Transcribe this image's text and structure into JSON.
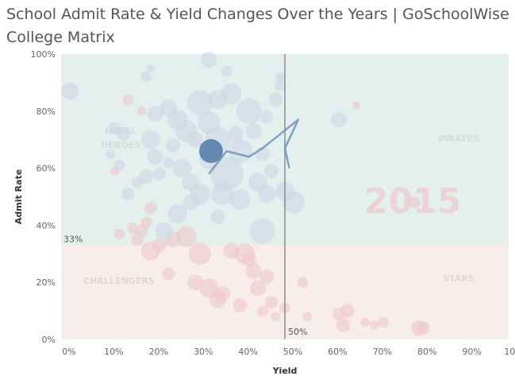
{
  "title_line1": "School Admit Rate & Yield Changes  Over the Years | GoSchoolWise",
  "title_line2": "College Matrix",
  "colors": {
    "upper_region": "#e3f0ee",
    "lower_region": "#f7eeec",
    "grey_bubble": "#ccd6e4",
    "pink_bubble": "#efc4c8",
    "highlight_bubble": "#4e79a7",
    "trail": "#6e93b8",
    "ref_line": "#8c8c8c",
    "quadrant_label": "#d9d9d9",
    "year_watermark": "#eecdd1"
  },
  "chart_data": {
    "type": "scatter",
    "title": "School Admit Rate & Yield Changes  Over the Years | GoSchoolWise College Matrix",
    "xlabel": "Yield",
    "ylabel": "Admit Rate",
    "xlim": [
      0,
      100
    ],
    "ylim": [
      0,
      100
    ],
    "x_ticks": [
      "0%",
      "10%",
      "20%",
      "30%",
      "40%",
      "50%",
      "60%",
      "70%",
      "80%",
      "90%",
      "100%"
    ],
    "y_ticks": [
      "0%",
      "20%",
      "40%",
      "60%",
      "80%",
      "100%"
    ],
    "grid": false,
    "reference_lines": {
      "admit_rate": 33,
      "admit_rate_label": "33%",
      "yield": 50,
      "yield_label": "50%"
    },
    "quadrants": {
      "top_left": "LOCAL HEROES",
      "top_right": "PIRATES",
      "bottom_left": "CHALLENGERS",
      "bottom_right": "STARS"
    },
    "year_watermark": "2015",
    "highlighted_school": {
      "x": 33.5,
      "y": 66,
      "r": 15
    },
    "trail": [
      [
        33,
        58
      ],
      [
        37,
        66
      ],
      [
        42,
        64
      ],
      [
        45,
        67
      ],
      [
        53,
        77
      ],
      [
        50,
        67
      ],
      [
        51,
        60
      ]
    ],
    "points_upper": [
      [
        2,
        87,
        11
      ],
      [
        12,
        74,
        8
      ],
      [
        14,
        72,
        9
      ],
      [
        11,
        65,
        6
      ],
      [
        13,
        61,
        7
      ],
      [
        17,
        55,
        7
      ],
      [
        19,
        57,
        9
      ],
      [
        19,
        92,
        7
      ],
      [
        20,
        95,
        5
      ],
      [
        21,
        79,
        10
      ],
      [
        20,
        70,
        12
      ],
      [
        21,
        64,
        10
      ],
      [
        22,
        58,
        8
      ],
      [
        24,
        81,
        11
      ],
      [
        26,
        77,
        13
      ],
      [
        25,
        68,
        9
      ],
      [
        24,
        62,
        7
      ],
      [
        27,
        60,
        12
      ],
      [
        28,
        73,
        14
      ],
      [
        30,
        70,
        10
      ],
      [
        31,
        83,
        16
      ],
      [
        29,
        55,
        11
      ],
      [
        31,
        51,
        13
      ],
      [
        33,
        63,
        12
      ],
      [
        33,
        76,
        14
      ],
      [
        35,
        84,
        12
      ],
      [
        35,
        70,
        16
      ],
      [
        37,
        58,
        21
      ],
      [
        36,
        51,
        14
      ],
      [
        38,
        86,
        13
      ],
      [
        39,
        72,
        10
      ],
      [
        40,
        49,
        13
      ],
      [
        40,
        66,
        15
      ],
      [
        42,
        80,
        16
      ],
      [
        43,
        73,
        10
      ],
      [
        44,
        55,
        12
      ],
      [
        45,
        65,
        9
      ],
      [
        46,
        78,
        8
      ],
      [
        47,
        59,
        9
      ],
      [
        48,
        84,
        9
      ],
      [
        49,
        89,
        7
      ],
      [
        49,
        92,
        6
      ],
      [
        46,
        51,
        11
      ],
      [
        45,
        38,
        16
      ],
      [
        50,
        52,
        12
      ],
      [
        52,
        48,
        14
      ],
      [
        33,
        98,
        10
      ],
      [
        37,
        94,
        7
      ],
      [
        29,
        48,
        10
      ],
      [
        26,
        44,
        12
      ],
      [
        23,
        38,
        11
      ],
      [
        35,
        43,
        9
      ],
      [
        15,
        51,
        8
      ],
      [
        62,
        77,
        10
      ]
    ],
    "points_lower": [
      [
        24,
        23,
        8
      ],
      [
        30,
        20,
        10
      ],
      [
        31,
        30,
        14
      ],
      [
        33,
        18,
        12
      ],
      [
        35,
        14,
        11
      ],
      [
        36,
        16,
        10
      ],
      [
        40,
        12,
        9
      ],
      [
        42,
        28,
        9
      ],
      [
        44,
        18,
        10
      ],
      [
        45,
        10,
        7
      ],
      [
        47,
        13,
        8
      ],
      [
        48,
        8,
        6
      ],
      [
        50,
        11,
        7
      ],
      [
        54,
        20,
        7
      ],
      [
        55,
        8,
        6
      ],
      [
        62,
        9,
        8
      ],
      [
        63,
        5,
        9
      ],
      [
        64,
        10,
        9
      ],
      [
        68,
        6,
        6
      ],
      [
        70,
        5,
        6
      ],
      [
        72,
        6,
        7
      ],
      [
        80,
        4,
        10
      ],
      [
        81,
        4,
        8
      ],
      [
        20,
        31,
        12
      ],
      [
        22,
        33,
        9
      ],
      [
        25,
        35,
        10
      ],
      [
        28,
        36,
        13
      ],
      [
        18,
        38,
        8
      ],
      [
        16,
        39,
        7
      ],
      [
        38,
        31,
        10
      ],
      [
        41,
        30,
        13
      ],
      [
        43,
        24,
        10
      ],
      [
        46,
        22,
        9
      ],
      [
        17,
        35,
        8
      ],
      [
        13,
        37,
        7
      ],
      [
        19,
        41,
        7
      ],
      [
        20,
        46,
        8
      ],
      [
        12,
        59,
        6
      ],
      [
        15,
        84,
        7
      ],
      [
        18,
        80,
        6
      ],
      [
        66,
        82,
        5
      ],
      [
        79,
        48,
        7
      ]
    ]
  }
}
